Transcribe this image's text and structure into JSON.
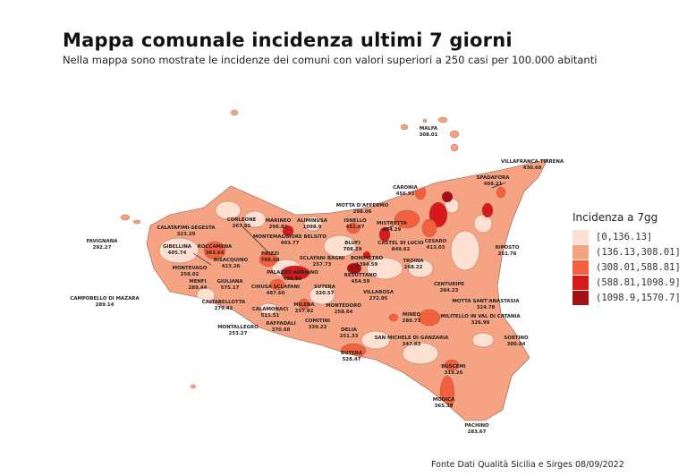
{
  "header": {
    "title": "Mappa comunale incidenza ultimi 7 giorni",
    "subtitle": "Nella mappa sono mostrate le incidenze dei comuni con valori superiori a 250 casi per 100.000 abitanti"
  },
  "legend": {
    "title": "Incidenza a 7gg",
    "classes": [
      {
        "label": "[0,136.13]",
        "color": "#fde0d2"
      },
      {
        "label": "(136.13,308.01]",
        "color": "#f6a384"
      },
      {
        "label": "(308.01,588.81]",
        "color": "#f2603e"
      },
      {
        "label": "(588.81,1098.9]",
        "color": "#d7191c"
      },
      {
        "label": "(1098.9,1570.7]",
        "color": "#a50f15"
      }
    ]
  },
  "labels": [
    {
      "name": "MALFA",
      "value": "308.01"
    },
    {
      "name": "VILLAFRANCA TIRRENA",
      "value": "430.68"
    },
    {
      "name": "SPADAFORA",
      "value": "409.21"
    },
    {
      "name": "CARONIA",
      "value": "456.93"
    },
    {
      "name": "MOTTA D'AFFERMO",
      "value": "298.06"
    },
    {
      "name": "ALIMINUSA",
      "value": "1098.9"
    },
    {
      "name": "ISNELLO",
      "value": "451.47"
    },
    {
      "name": "MISTRETTA",
      "value": "434.29"
    },
    {
      "name": "CESARO",
      "value": "413.03"
    },
    {
      "name": "RIPOSTO",
      "value": "251.76"
    },
    {
      "name": "MARINEO",
      "value": "296.82"
    },
    {
      "name": "CORLEONE",
      "value": "267.85"
    },
    {
      "name": "CALATAFIMI-SEGESTA",
      "value": "323.29"
    },
    {
      "name": "FAVIGNANA",
      "value": "292.27"
    },
    {
      "name": "GIBELLINA",
      "value": "405.74"
    },
    {
      "name": "ROCCAMENA",
      "value": "363.64"
    },
    {
      "name": "MONTEMAGGIORE BELSITO",
      "value": "403.77"
    },
    {
      "name": "BLUFI",
      "value": "708.29"
    },
    {
      "name": "CASTEL DI LUCIO",
      "value": "849.62"
    },
    {
      "name": "PRIZZI",
      "value": "788.58"
    },
    {
      "name": "BISACQUINO",
      "value": "423.26"
    },
    {
      "name": "MONTEVAGO",
      "value": "258.02"
    },
    {
      "name": "SCLAFANI BAGNI",
      "value": "257.73"
    },
    {
      "name": "BOMPIETRO",
      "value": "1394.59"
    },
    {
      "name": "TROINA",
      "value": "268.22"
    },
    {
      "name": "PALAZZO ADRIANO",
      "value": "489.86"
    },
    {
      "name": "RESUTTANO",
      "value": "454.59"
    },
    {
      "name": "MENFI",
      "value": "289.44"
    },
    {
      "name": "GIULIANA",
      "value": "575.17"
    },
    {
      "name": "CHIUSA SCLAFANI",
      "value": "487.60"
    },
    {
      "name": "SUTERA",
      "value": "320.57"
    },
    {
      "name": "VILLAROSA",
      "value": "272.95"
    },
    {
      "name": "CENTURIPE",
      "value": "284.23"
    },
    {
      "name": "MOTTA SANT'ANASTASIA",
      "value": "324.78"
    },
    {
      "name": "CAMPOBELLO DI MAZARA",
      "value": "289.14"
    },
    {
      "name": "CALTABELLOTTA",
      "value": "279.42"
    },
    {
      "name": "CALAMONACI",
      "value": "511.51"
    },
    {
      "name": "MILENA",
      "value": "257.82"
    },
    {
      "name": "MONTEDORO",
      "value": "258.64"
    },
    {
      "name": "RAFFADALI",
      "value": "370.68"
    },
    {
      "name": "COMITINI",
      "value": "339.22"
    },
    {
      "name": "DELIA",
      "value": "251.33"
    },
    {
      "name": "MONTALLEGRO",
      "value": "253.27"
    },
    {
      "name": "MINEO",
      "value": "280.73"
    },
    {
      "name": "MILITELLO IN VAL DI CATANIA",
      "value": "326.99"
    },
    {
      "name": "SAN MICHELE DI GANZARIA",
      "value": "347.83"
    },
    {
      "name": "SORTINO",
      "value": "300.84"
    },
    {
      "name": "BUTERA",
      "value": "528.47"
    },
    {
      "name": "BUSCEMI",
      "value": "319.26"
    },
    {
      "name": "MODICA",
      "value": "365.38"
    },
    {
      "name": "PACHINO",
      "value": "283.67"
    }
  ],
  "footer": {
    "source": "Fonte Dati Qualità Sicilia e Sirges 08/09/2022"
  }
}
